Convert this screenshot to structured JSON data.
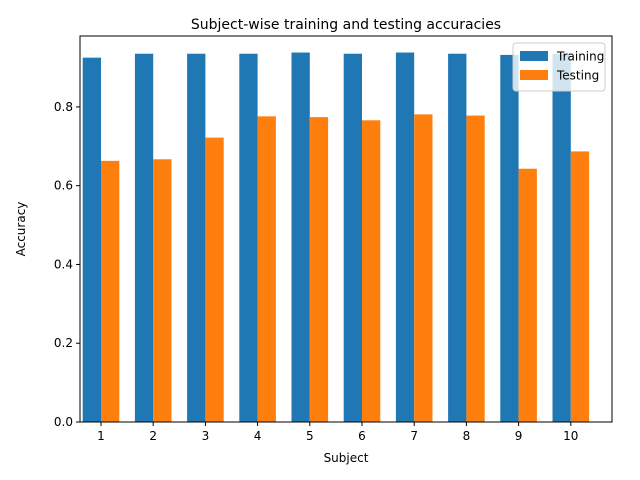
{
  "chart_data": {
    "type": "bar",
    "title": "Subject-wise training and testing accuracies",
    "xlabel": "Subject",
    "ylabel": "Accuracy",
    "categories": [
      "1",
      "2",
      "3",
      "4",
      "5",
      "6",
      "7",
      "8",
      "9",
      "10"
    ],
    "series": [
      {
        "name": "Training",
        "color": "#1f77b4",
        "values": [
          0.925,
          0.935,
          0.935,
          0.935,
          0.938,
          0.935,
          0.938,
          0.935,
          0.932,
          0.935
        ]
      },
      {
        "name": "Testing",
        "color": "#ff7f0e",
        "values": [
          0.663,
          0.667,
          0.722,
          0.776,
          0.774,
          0.766,
          0.781,
          0.778,
          0.643,
          0.687
        ]
      }
    ],
    "ylim": [
      0,
      0.98
    ],
    "yticks": [
      "0.0",
      "0.2",
      "0.4",
      "0.6",
      "0.8"
    ],
    "grid": false,
    "legend_position": "top-right"
  }
}
